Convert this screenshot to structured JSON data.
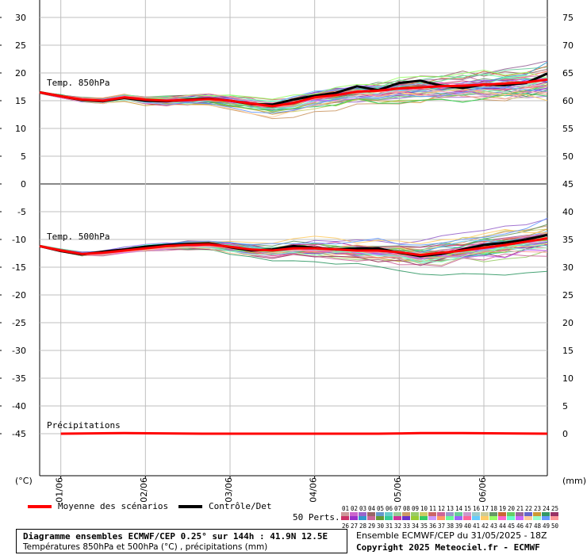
{
  "chart_data": {
    "type": "line",
    "title": "Diagramme ensembles ECMWF/CEP 0.25° sur 144h : 41.9N 12.5E",
    "subtitle": "Températures 850hPa et 500hPa (°C) , précipitations (mm)",
    "run_info": "Ensemble ECMWF/CEP du 31/05/2025 - 18Z",
    "copyright": "Copyright 2025 Meteociel.fr - ECMWF",
    "left_unit": "(°C)",
    "right_unit": "(mm)",
    "x_labels": [
      "01/06",
      "02/06",
      "03/06",
      "04/06",
      "05/06",
      "06/06"
    ],
    "x_range_hours": [
      0,
      144
    ],
    "left_ticks": [
      "30",
      "25",
      "20",
      "15",
      "10",
      "5",
      "0",
      "-5",
      "-10",
      "-15",
      "-20",
      "-25",
      "-30",
      "-35",
      "-40",
      "-45"
    ],
    "right_ticks": [
      "75",
      "70",
      "65",
      "60",
      "55",
      "50",
      "45",
      "40",
      "35",
      "30",
      "25",
      "20",
      "15",
      "10",
      "5",
      "0"
    ],
    "y_range": [
      -53,
      33
    ],
    "grid": true,
    "panels": [
      {
        "label": "Temp. 850hPa",
        "range": [
          0,
          33
        ]
      },
      {
        "label": "Temp. 500hPa",
        "range": [
          -53,
          0
        ]
      }
    ],
    "series": [
      {
        "name": "Moyenne des scénarios",
        "color": "#ff0000",
        "t850": [
          [
            0,
            16.5
          ],
          [
            6,
            15.8
          ],
          [
            12,
            15.2
          ],
          [
            18,
            15.0
          ],
          [
            24,
            15.6
          ],
          [
            30,
            15.2
          ],
          [
            36,
            15.0
          ],
          [
            42,
            15.1
          ],
          [
            48,
            15.3
          ],
          [
            54,
            15.0
          ],
          [
            60,
            14.5
          ],
          [
            66,
            14.0
          ],
          [
            72,
            14.6
          ],
          [
            78,
            15.6
          ],
          [
            84,
            16.0
          ],
          [
            90,
            16.6
          ],
          [
            96,
            16.8
          ],
          [
            102,
            17.2
          ],
          [
            108,
            17.4
          ],
          [
            114,
            17.6
          ],
          [
            120,
            17.7
          ],
          [
            126,
            17.9
          ],
          [
            132,
            18.1
          ],
          [
            138,
            18.3
          ],
          [
            144,
            18.8
          ]
        ],
        "t500": [
          [
            0,
            -11.2
          ],
          [
            6,
            -12.0
          ],
          [
            12,
            -12.6
          ],
          [
            18,
            -12.4
          ],
          [
            24,
            -12.0
          ],
          [
            30,
            -11.6
          ],
          [
            36,
            -11.2
          ],
          [
            42,
            -11.0
          ],
          [
            48,
            -10.9
          ],
          [
            54,
            -11.3
          ],
          [
            60,
            -11.8
          ],
          [
            66,
            -12.0
          ],
          [
            72,
            -11.6
          ],
          [
            78,
            -11.6
          ],
          [
            84,
            -11.8
          ],
          [
            90,
            -12.0
          ],
          [
            96,
            -12.0
          ],
          [
            102,
            -12.3
          ],
          [
            108,
            -12.8
          ],
          [
            114,
            -12.4
          ],
          [
            120,
            -12.0
          ],
          [
            126,
            -11.5
          ],
          [
            132,
            -11.0
          ],
          [
            138,
            -10.4
          ],
          [
            144,
            -9.8
          ]
        ],
        "precip": [
          [
            6,
            0.0
          ],
          [
            24,
            0.1
          ],
          [
            48,
            0.0
          ],
          [
            96,
            0.0
          ],
          [
            108,
            0.1
          ],
          [
            120,
            0.1
          ],
          [
            144,
            0.0
          ]
        ]
      },
      {
        "name": "Contrôle/Det",
        "color": "#000000",
        "t850": [
          [
            0,
            16.5
          ],
          [
            6,
            15.8
          ],
          [
            12,
            15.1
          ],
          [
            18,
            14.9
          ],
          [
            24,
            15.5
          ],
          [
            30,
            15.0
          ],
          [
            36,
            14.9
          ],
          [
            42,
            15.2
          ],
          [
            48,
            15.4
          ],
          [
            54,
            15.0
          ],
          [
            60,
            14.4
          ],
          [
            66,
            14.3
          ],
          [
            72,
            15.2
          ],
          [
            78,
            15.9
          ],
          [
            84,
            16.4
          ],
          [
            90,
            17.6
          ],
          [
            96,
            16.9
          ],
          [
            102,
            18.2
          ],
          [
            108,
            18.6
          ],
          [
            114,
            17.7
          ],
          [
            120,
            17.3
          ],
          [
            126,
            17.9
          ],
          [
            132,
            17.8
          ],
          [
            138,
            18.2
          ],
          [
            144,
            19.9
          ]
        ],
        "t500": [
          [
            0,
            -11.2
          ],
          [
            6,
            -12.1
          ],
          [
            12,
            -12.7
          ],
          [
            18,
            -12.2
          ],
          [
            24,
            -11.8
          ],
          [
            30,
            -11.3
          ],
          [
            36,
            -11.0
          ],
          [
            42,
            -10.8
          ],
          [
            48,
            -10.7
          ],
          [
            54,
            -11.4
          ],
          [
            60,
            -12.0
          ],
          [
            66,
            -11.8
          ],
          [
            72,
            -11.2
          ],
          [
            78,
            -11.5
          ],
          [
            84,
            -11.8
          ],
          [
            90,
            -11.6
          ],
          [
            96,
            -11.6
          ],
          [
            102,
            -12.4
          ],
          [
            108,
            -13.0
          ],
          [
            114,
            -12.6
          ],
          [
            120,
            -11.8
          ],
          [
            126,
            -11.0
          ],
          [
            132,
            -10.6
          ],
          [
            138,
            -10.0
          ],
          [
            144,
            -9.2
          ]
        ]
      }
    ],
    "members": {
      "label": "50 Perts.",
      "numbers_row1": [
        "01",
        "02",
        "03",
        "04",
        "05",
        "06",
        "07",
        "08",
        "09",
        "10",
        "11",
        "12",
        "13",
        "14",
        "15",
        "16",
        "17",
        "18",
        "19",
        "20",
        "21",
        "22",
        "23",
        "24",
        "25"
      ],
      "numbers_row2": [
        "26",
        "27",
        "28",
        "29",
        "30",
        "31",
        "32",
        "33",
        "34",
        "35",
        "36",
        "37",
        "38",
        "39",
        "40",
        "41",
        "42",
        "43",
        "44",
        "45",
        "46",
        "47",
        "48",
        "49",
        "50"
      ],
      "colors": [
        "#cc9999",
        "#cc66cc",
        "#9966cc",
        "#996666",
        "#6699cc",
        "#66cccc",
        "#99cc99",
        "#cc9966",
        "#99cc66",
        "#cccc66",
        "#cc6666",
        "#cc6699",
        "#9999cc",
        "#66cc99",
        "#cc99cc",
        "#99cccc",
        "#cccc99",
        "#669966",
        "#cc6633",
        "#66cc66",
        "#996699",
        "#6666cc",
        "#cc9933",
        "#339966",
        "#993366",
        "#cc3366",
        "#9933cc",
        "#3399cc",
        "#cc6699",
        "#669933",
        "#33cc99",
        "#cc3399",
        "#6633cc",
        "#99cc33",
        "#33cc66",
        "#cc99ff",
        "#ff9966",
        "#66ff99",
        "#9966ff",
        "#ff6699",
        "#66ccff",
        "#ffcc66",
        "#99ff66",
        "#ff66cc",
        "#66ffcc",
        "#cc66ff",
        "#ffcc99",
        "#99ffcc",
        "#6699ff",
        "#ff9999"
      ]
    }
  }
}
